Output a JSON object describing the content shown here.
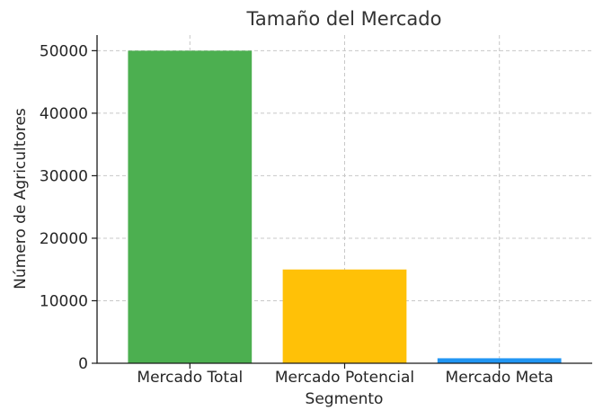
{
  "chart_data": {
    "type": "bar",
    "title": "Tamaño del Mercado",
    "xlabel": "Segmento",
    "ylabel": "Número de Agricultores",
    "categories": [
      "Mercado Total",
      "Mercado Potencial",
      "Mercado Meta"
    ],
    "values": [
      50000,
      15000,
      800
    ],
    "colors": [
      "#4caf50",
      "#ffc107",
      "#2196f3"
    ],
    "ylim": [
      0,
      52500
    ],
    "yticks": [
      0,
      10000,
      20000,
      30000,
      40000,
      50000
    ],
    "grid": true,
    "legend": "none"
  }
}
